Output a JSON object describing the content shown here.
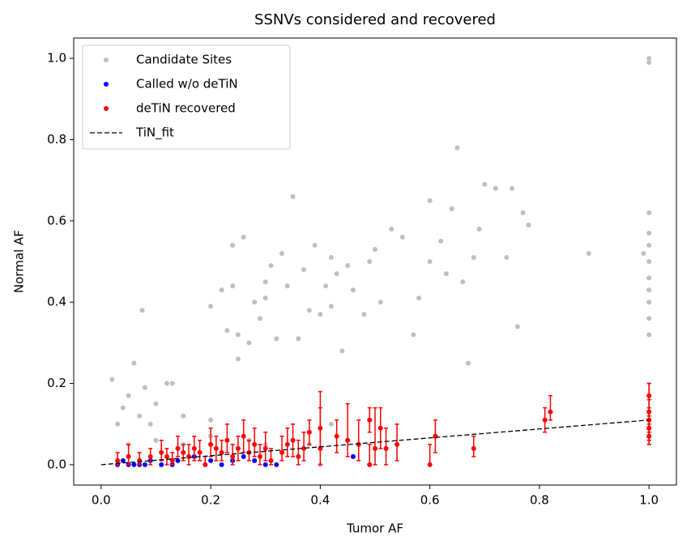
{
  "chart_data": {
    "type": "scatter",
    "title": "SSNVs considered and recovered",
    "x_label": "Tumor AF",
    "y_label": "Normal AF",
    "xlim": [
      -0.05,
      1.05
    ],
    "ylim": [
      -0.05,
      1.05
    ],
    "xticks": [
      {
        "value": 0,
        "label": "0.0"
      },
      {
        "value": 0.2,
        "label": "0.2"
      },
      {
        "value": 0.4,
        "label": "0.4"
      },
      {
        "value": 0.6,
        "label": "0.6"
      },
      {
        "value": 0.8,
        "label": "0.8"
      },
      {
        "value": 1,
        "label": "1.0"
      }
    ],
    "yticks": [
      {
        "value": 0,
        "label": "0.0"
      },
      {
        "value": 0.2,
        "label": "0.2"
      },
      {
        "value": 0.4,
        "label": "0.4"
      },
      {
        "value": 0.6,
        "label": "0.6"
      },
      {
        "value": 0.8,
        "label": "0.8"
      },
      {
        "value": 1,
        "label": "1.0"
      }
    ],
    "grid": false,
    "legend": "upper left",
    "series": [
      {
        "name": "Candidate Sites",
        "color": "#bfbfbf",
        "marker": "dot",
        "x": [
          0.02,
          0.03,
          0.04,
          0.05,
          0.06,
          0.07,
          0.075,
          0.08,
          0.09,
          0.1,
          0.12,
          0.13,
          0.15,
          0.2,
          0.2,
          0.22,
          0.23,
          0.24,
          0.24,
          0.25,
          0.25,
          0.26,
          0.27,
          0.28,
          0.29,
          0.3,
          0.3,
          0.31,
          0.32,
          0.33,
          0.34,
          0.35,
          0.36,
          0.37,
          0.38,
          0.39,
          0.4,
          0.41,
          0.42,
          0.42,
          0.43,
          0.44,
          0.45,
          0.46,
          0.48,
          0.49,
          0.5,
          0.51,
          0.53,
          0.55,
          0.57,
          0.58,
          0.6,
          0.6,
          0.62,
          0.63,
          0.64,
          0.65,
          0.66,
          0.67,
          0.68,
          0.69,
          0.7,
          0.72,
          0.74,
          0.75,
          0.76,
          0.77,
          0.78,
          0.89,
          0.99,
          1,
          1,
          1,
          1,
          1,
          1,
          1,
          1,
          1,
          1,
          1,
          0.05,
          0.1,
          0.15,
          0.2,
          0.3,
          0.4,
          0.42,
          0.38,
          0.27
        ],
        "values": [
          0.21,
          0.1,
          0.14,
          0.17,
          0.25,
          0.12,
          0.38,
          0.19,
          0.1,
          0.15,
          0.2,
          0.2,
          0.12,
          0.11,
          0.39,
          0.43,
          0.33,
          0.54,
          0.44,
          0.32,
          0.26,
          0.56,
          0.3,
          0.4,
          0.36,
          0.41,
          0.45,
          0.49,
          0.31,
          0.52,
          0.44,
          0.66,
          0.31,
          0.48,
          0.38,
          0.54,
          0.37,
          0.44,
          0.51,
          0.39,
          0.47,
          0.28,
          0.49,
          0.43,
          0.37,
          0.5,
          0.53,
          0.4,
          0.58,
          0.56,
          0.32,
          0.41,
          0.5,
          0.65,
          0.55,
          0.47,
          0.63,
          0.78,
          0.45,
          0.25,
          0.51,
          0.58,
          0.69,
          0.68,
          0.51,
          0.68,
          0.34,
          0.62,
          0.59,
          0.52,
          0.52,
          1,
          0.99,
          0.62,
          0.57,
          0.54,
          0.5,
          0.46,
          0.43,
          0.4,
          0.36,
          0.32,
          0.05,
          0.06,
          0.05,
          0.07,
          0.05,
          0,
          0.1,
          0.05,
          0.06
        ]
      },
      {
        "name": "Called w/o deTiN",
        "color": "#0000ff",
        "marker": "dot",
        "x": [
          0.03,
          0.04,
          0.05,
          0.06,
          0.07,
          0.08,
          0.09,
          0.11,
          0.13,
          0.14,
          0.17,
          0.2,
          0.22,
          0.24,
          0.26,
          0.28,
          0.3,
          0.32,
          0.46
        ],
        "values": [
          0,
          0.01,
          0,
          0,
          0,
          0,
          0.01,
          0,
          0,
          0.01,
          0.02,
          0.01,
          0,
          0.01,
          0.02,
          0.01,
          0,
          0,
          0.02
        ]
      },
      {
        "name": "deTiN recovered",
        "color": "#ff0000",
        "marker": "dot",
        "x": [
          0.03,
          0.05,
          0.07,
          0.09,
          0.11,
          0.12,
          0.13,
          0.14,
          0.15,
          0.16,
          0.17,
          0.18,
          0.19,
          0.2,
          0.21,
          0.22,
          0.23,
          0.24,
          0.25,
          0.26,
          0.27,
          0.28,
          0.29,
          0.3,
          0.31,
          0.33,
          0.34,
          0.35,
          0.36,
          0.37,
          0.38,
          0.4,
          0.4,
          0.43,
          0.45,
          0.47,
          0.49,
          0.49,
          0.5,
          0.51,
          0.52,
          0.54,
          0.6,
          0.61,
          0.68,
          0.81,
          0.82,
          1,
          1,
          1,
          1,
          1
        ],
        "values": [
          0.01,
          0.02,
          0.01,
          0.02,
          0.03,
          0.02,
          0.01,
          0.04,
          0.03,
          0.02,
          0.04,
          0.03,
          0,
          0.05,
          0.04,
          0.03,
          0.06,
          0.02,
          0.04,
          0.07,
          0.03,
          0.05,
          0.02,
          0.04,
          0.01,
          0.03,
          0.05,
          0.06,
          0.02,
          0.04,
          0.08,
          0.09,
          0.04,
          0.07,
          0.06,
          0.05,
          0.11,
          0,
          0.04,
          0.09,
          0.04,
          0.05,
          0,
          0.07,
          0.04,
          0.11,
          0.13,
          0.09,
          0.11,
          0.13,
          0.17,
          0.07
        ],
        "error_low": [
          0.01,
          0.02,
          0.01,
          0.02,
          0.02,
          0.02,
          0.01,
          0.02,
          0.02,
          0.02,
          0.03,
          0.02,
          0,
          0.03,
          0.03,
          0.02,
          0.03,
          0.02,
          0.03,
          0.04,
          0.02,
          0.03,
          0.02,
          0.03,
          0.01,
          0.02,
          0.03,
          0.04,
          0.02,
          0.03,
          0.03,
          0.05,
          0.04,
          0.04,
          0.04,
          0.04,
          0.03,
          0,
          0.04,
          0.05,
          0.04,
          0.04,
          0,
          0.04,
          0.02,
          0.03,
          0.02,
          0.04,
          0.05,
          0.05,
          0.05,
          0.02
        ],
        "error_high": [
          0.02,
          0.03,
          0.02,
          0.02,
          0.03,
          0.02,
          0.02,
          0.03,
          0.02,
          0.03,
          0.03,
          0.03,
          0.02,
          0.04,
          0.03,
          0.03,
          0.04,
          0.03,
          0.03,
          0.04,
          0.03,
          0.04,
          0.03,
          0.04,
          0.03,
          0.04,
          0.04,
          0.04,
          0.04,
          0.04,
          0.03,
          0.05,
          0.14,
          0.04,
          0.09,
          0.06,
          0.03,
          0.05,
          0.1,
          0.05,
          0.05,
          0.05,
          0.05,
          0.04,
          0.03,
          0.03,
          0.04,
          0.05,
          0.05,
          0.07,
          0.03,
          0.03
        ]
      },
      {
        "name": "TiN_fit",
        "color": "#000000",
        "marker": "dashed-line",
        "x": [
          0,
          1
        ],
        "values": [
          0,
          0.11
        ]
      }
    ]
  }
}
